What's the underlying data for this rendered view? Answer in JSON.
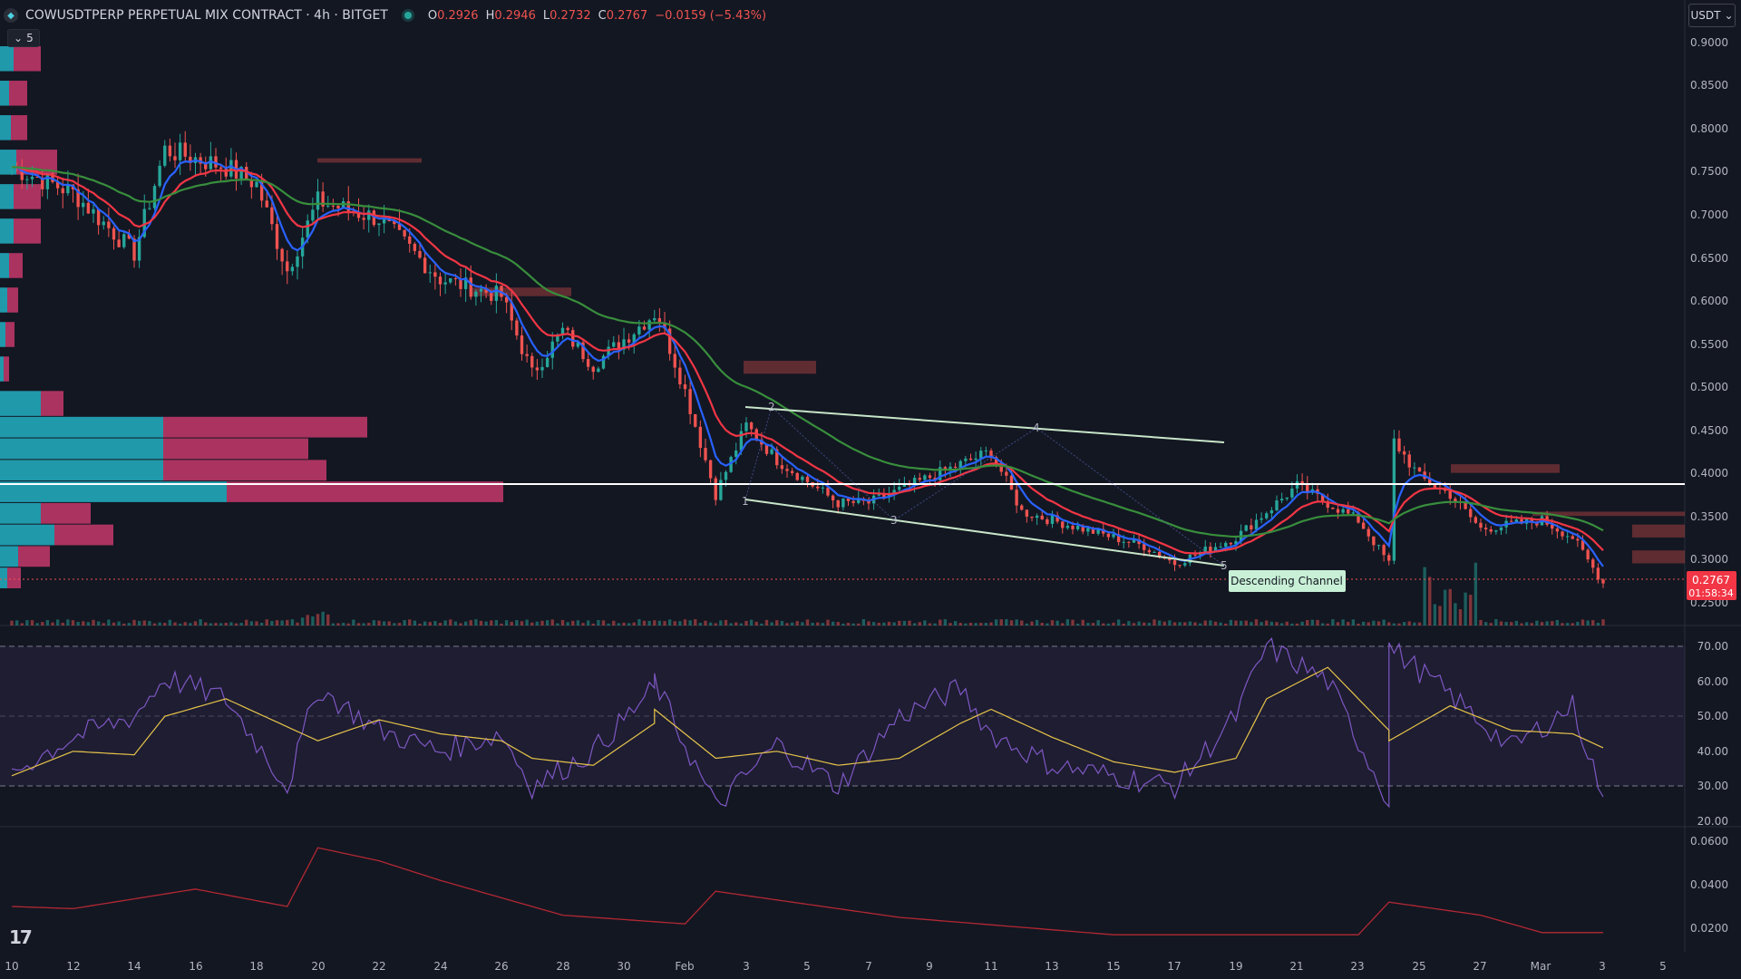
{
  "header": {
    "symbol_title": "COWUSDTPERP PERPETUAL MIX CONTRACT · 4h · BITGET",
    "ohlc": [
      {
        "k": "O",
        "v": "0.2926"
      },
      {
        "k": "H",
        "v": "0.2946"
      },
      {
        "k": "L",
        "v": "0.2732"
      },
      {
        "k": "C",
        "v": "0.2767"
      },
      {
        "k": "",
        "v": "−0.0159 (−5.43%)"
      }
    ]
  },
  "indicators_toggle": "5",
  "currency": "USDT",
  "price_axis": {
    "ticks": [
      "0.9000",
      "0.8500",
      "0.8000",
      "0.7500",
      "0.7000",
      "0.6500",
      "0.6000",
      "0.5500",
      "0.5000",
      "0.4500",
      "0.4000",
      "0.3500",
      "0.3000",
      "0.2500"
    ],
    "current_price": "0.2767",
    "countdown": "01:58:34"
  },
  "rsi_axis": {
    "ticks": [
      "70.00",
      "60.00",
      "50.00",
      "40.00",
      "30.00",
      "20.00"
    ]
  },
  "bottom_axis": {
    "ticks": [
      "0.0600",
      "0.0400",
      "0.0200"
    ]
  },
  "time_axis": {
    "ticks": [
      "10",
      "12",
      "14",
      "16",
      "18",
      "20",
      "22",
      "24",
      "26",
      "28",
      "30",
      "Feb",
      "3",
      "5",
      "7",
      "9",
      "11",
      "13",
      "15",
      "17",
      "19",
      "21",
      "23",
      "25",
      "27",
      "Mar",
      "3",
      "5"
    ]
  },
  "annotations": {
    "channel_label": "Descending Channel",
    "wave_points": [
      "1",
      "2",
      "3",
      "4",
      "5"
    ]
  },
  "colors": {
    "background": "#131722",
    "up": "#26a69a",
    "down": "#ef5350",
    "ema_fast": "#2962ff",
    "ema_mid": "#f23645",
    "ema_slow": "#388e3c",
    "rsi": "#7e57c2",
    "rsi_ma": "#e6c34a",
    "bottom_line": "#b22833",
    "channel": "#c8e6c9"
  },
  "chart_data": {
    "type": "candlestick",
    "timeframe": "4h",
    "ylim": [
      0.25,
      0.9
    ],
    "key_points": [
      {
        "label": "Jan 10",
        "price": 0.76
      },
      {
        "label": "Jan 12",
        "price": 0.73
      },
      {
        "label": "Jan 14",
        "price": 0.66
      },
      {
        "label": "Jan 15",
        "price": 0.78
      },
      {
        "label": "Jan 17",
        "price": 0.76
      },
      {
        "label": "Jan 18",
        "price": 0.74
      },
      {
        "label": "Jan 19",
        "price": 0.64
      },
      {
        "label": "Jan 20",
        "price": 0.72
      },
      {
        "label": "Jan 22",
        "price": 0.7
      },
      {
        "label": "Jan 24",
        "price": 0.63
      },
      {
        "label": "Jan 26",
        "price": 0.61
      },
      {
        "label": "Jan 27",
        "price": 0.52
      },
      {
        "label": "Jan 28",
        "price": 0.57
      },
      {
        "label": "Jan 29",
        "price": 0.53
      },
      {
        "label": "Jan 31",
        "price": 0.59
      },
      {
        "label": "Feb 1",
        "price": 0.6
      },
      {
        "label": "Feb 2",
        "price": 0.5
      },
      {
        "label": "Feb 3",
        "price": 0.38
      },
      {
        "label": "Feb 4",
        "price": 0.46
      },
      {
        "label": "Feb 5",
        "price": 0.42
      },
      {
        "label": "Feb 7",
        "price": 0.37
      },
      {
        "label": "Feb 8",
        "price": 0.37
      },
      {
        "label": "Feb 10",
        "price": 0.4
      },
      {
        "label": "Feb 12",
        "price": 0.43
      },
      {
        "label": "Feb 13",
        "price": 0.36
      },
      {
        "label": "Feb 15",
        "price": 0.34
      },
      {
        "label": "Feb 17",
        "price": 0.32
      },
      {
        "label": "Feb 18",
        "price": 0.3
      },
      {
        "label": "Feb 20",
        "price": 0.33
      },
      {
        "label": "Feb 22",
        "price": 0.39
      },
      {
        "label": "Feb 24",
        "price": 0.35
      },
      {
        "label": "Feb 25",
        "price": 0.3
      },
      {
        "label": "Feb 25",
        "price": 0.45
      },
      {
        "label": "Feb 26",
        "price": 0.4
      },
      {
        "label": "Feb 27",
        "price": 0.38
      },
      {
        "label": "Feb 28",
        "price": 0.34
      },
      {
        "label": "Mar 2",
        "price": 0.35
      },
      {
        "label": "Mar 3",
        "price": 0.33
      },
      {
        "label": "Mar 4",
        "price": 0.2767
      }
    ],
    "horizontal_line": 0.39,
    "channel": {
      "upper": [
        {
          "label": "Feb 3",
          "price": 0.477
        },
        {
          "label": "Feb 19",
          "price": 0.437
        }
      ],
      "lower": [
        {
          "label": "Feb 3",
          "price": 0.368
        },
        {
          "label": "Feb 19",
          "price": 0.293
        }
      ]
    },
    "rsi": {
      "ylim": [
        20,
        70
      ],
      "levels": [
        70,
        50,
        30
      ],
      "key_points": [
        {
          "label": "Jan 10",
          "rsi": 34,
          "ma": 33
        },
        {
          "label": "Jan 12",
          "rsi": 44,
          "ma": 40
        },
        {
          "label": "Jan 14",
          "rsi": 50,
          "ma": 39
        },
        {
          "label": "Jan 15",
          "rsi": 61,
          "ma": 50
        },
        {
          "label": "Jan 17",
          "rsi": 55,
          "ma": 55
        },
        {
          "label": "Jan 19",
          "rsi": 30,
          "ma": 47
        },
        {
          "label": "Jan 20",
          "rsi": 58,
          "ma": 43
        },
        {
          "label": "Jan 22",
          "rsi": 46,
          "ma": 49
        },
        {
          "label": "Jan 24",
          "rsi": 40,
          "ma": 45
        },
        {
          "label": "Jan 26",
          "rsi": 45,
          "ma": 43
        },
        {
          "label": "Jan 27",
          "rsi": 30,
          "ma": 38
        },
        {
          "label": "Jan 29",
          "rsi": 40,
          "ma": 36
        },
        {
          "label": "Jan 31",
          "rsi": 58,
          "ma": 48
        },
        {
          "label": "Feb 1",
          "rsi": 60,
          "ma": 52
        },
        {
          "label": "Feb 3",
          "rsi": 24,
          "ma": 38
        },
        {
          "label": "Feb 5",
          "rsi": 42,
          "ma": 40
        },
        {
          "label": "Feb 7",
          "rsi": 30,
          "ma": 36
        },
        {
          "label": "Feb 9",
          "rsi": 50,
          "ma": 38
        },
        {
          "label": "Feb 11",
          "rsi": 58,
          "ma": 48
        },
        {
          "label": "Feb 12",
          "rsi": 45,
          "ma": 52
        },
        {
          "label": "Feb 14",
          "rsi": 36,
          "ma": 44
        },
        {
          "label": "Feb 16",
          "rsi": 33,
          "ma": 37
        },
        {
          "label": "Feb 18",
          "rsi": 30,
          "ma": 34
        },
        {
          "label": "Feb 20",
          "rsi": 50,
          "ma": 38
        },
        {
          "label": "Feb 21",
          "rsi": 70,
          "ma": 55
        },
        {
          "label": "Feb 23",
          "rsi": 60,
          "ma": 64
        },
        {
          "label": "Feb 25",
          "rsi": 26,
          "ma": 46
        },
        {
          "label": "Feb 25",
          "rsi": 70,
          "ma": 43
        },
        {
          "label": "Feb 27",
          "rsi": 56,
          "ma": 53
        },
        {
          "label": "Mar 1",
          "rsi": 41,
          "ma": 46
        },
        {
          "label": "Mar 3",
          "rsi": 53,
          "ma": 45
        },
        {
          "label": "Mar 4",
          "rsi": 27,
          "ma": 41
        }
      ]
    },
    "bottom_indicator": {
      "ylim": [
        0.015,
        0.065
      ],
      "key_points": [
        {
          "label": "Jan 10",
          "value": 0.03
        },
        {
          "label": "Jan 12",
          "value": 0.029
        },
        {
          "label": "Jan 16",
          "value": 0.038
        },
        {
          "label": "Jan 19",
          "value": 0.03
        },
        {
          "label": "Jan 20",
          "value": 0.057
        },
        {
          "label": "Jan 22",
          "value": 0.051
        },
        {
          "label": "Jan 24",
          "value": 0.042
        },
        {
          "label": "Jan 28",
          "value": 0.026
        },
        {
          "label": "Feb 2",
          "value": 0.022
        },
        {
          "label": "Feb 3",
          "value": 0.037
        },
        {
          "label": "Feb 9",
          "value": 0.025
        },
        {
          "label": "Feb 16",
          "value": 0.017
        },
        {
          "label": "Feb 24",
          "value": 0.017
        },
        {
          "label": "Feb 25",
          "value": 0.032
        },
        {
          "label": "Feb 28",
          "value": 0.026
        },
        {
          "label": "Mar 2",
          "value": 0.018
        },
        {
          "label": "Mar 4",
          "value": 0.018
        }
      ]
    }
  }
}
